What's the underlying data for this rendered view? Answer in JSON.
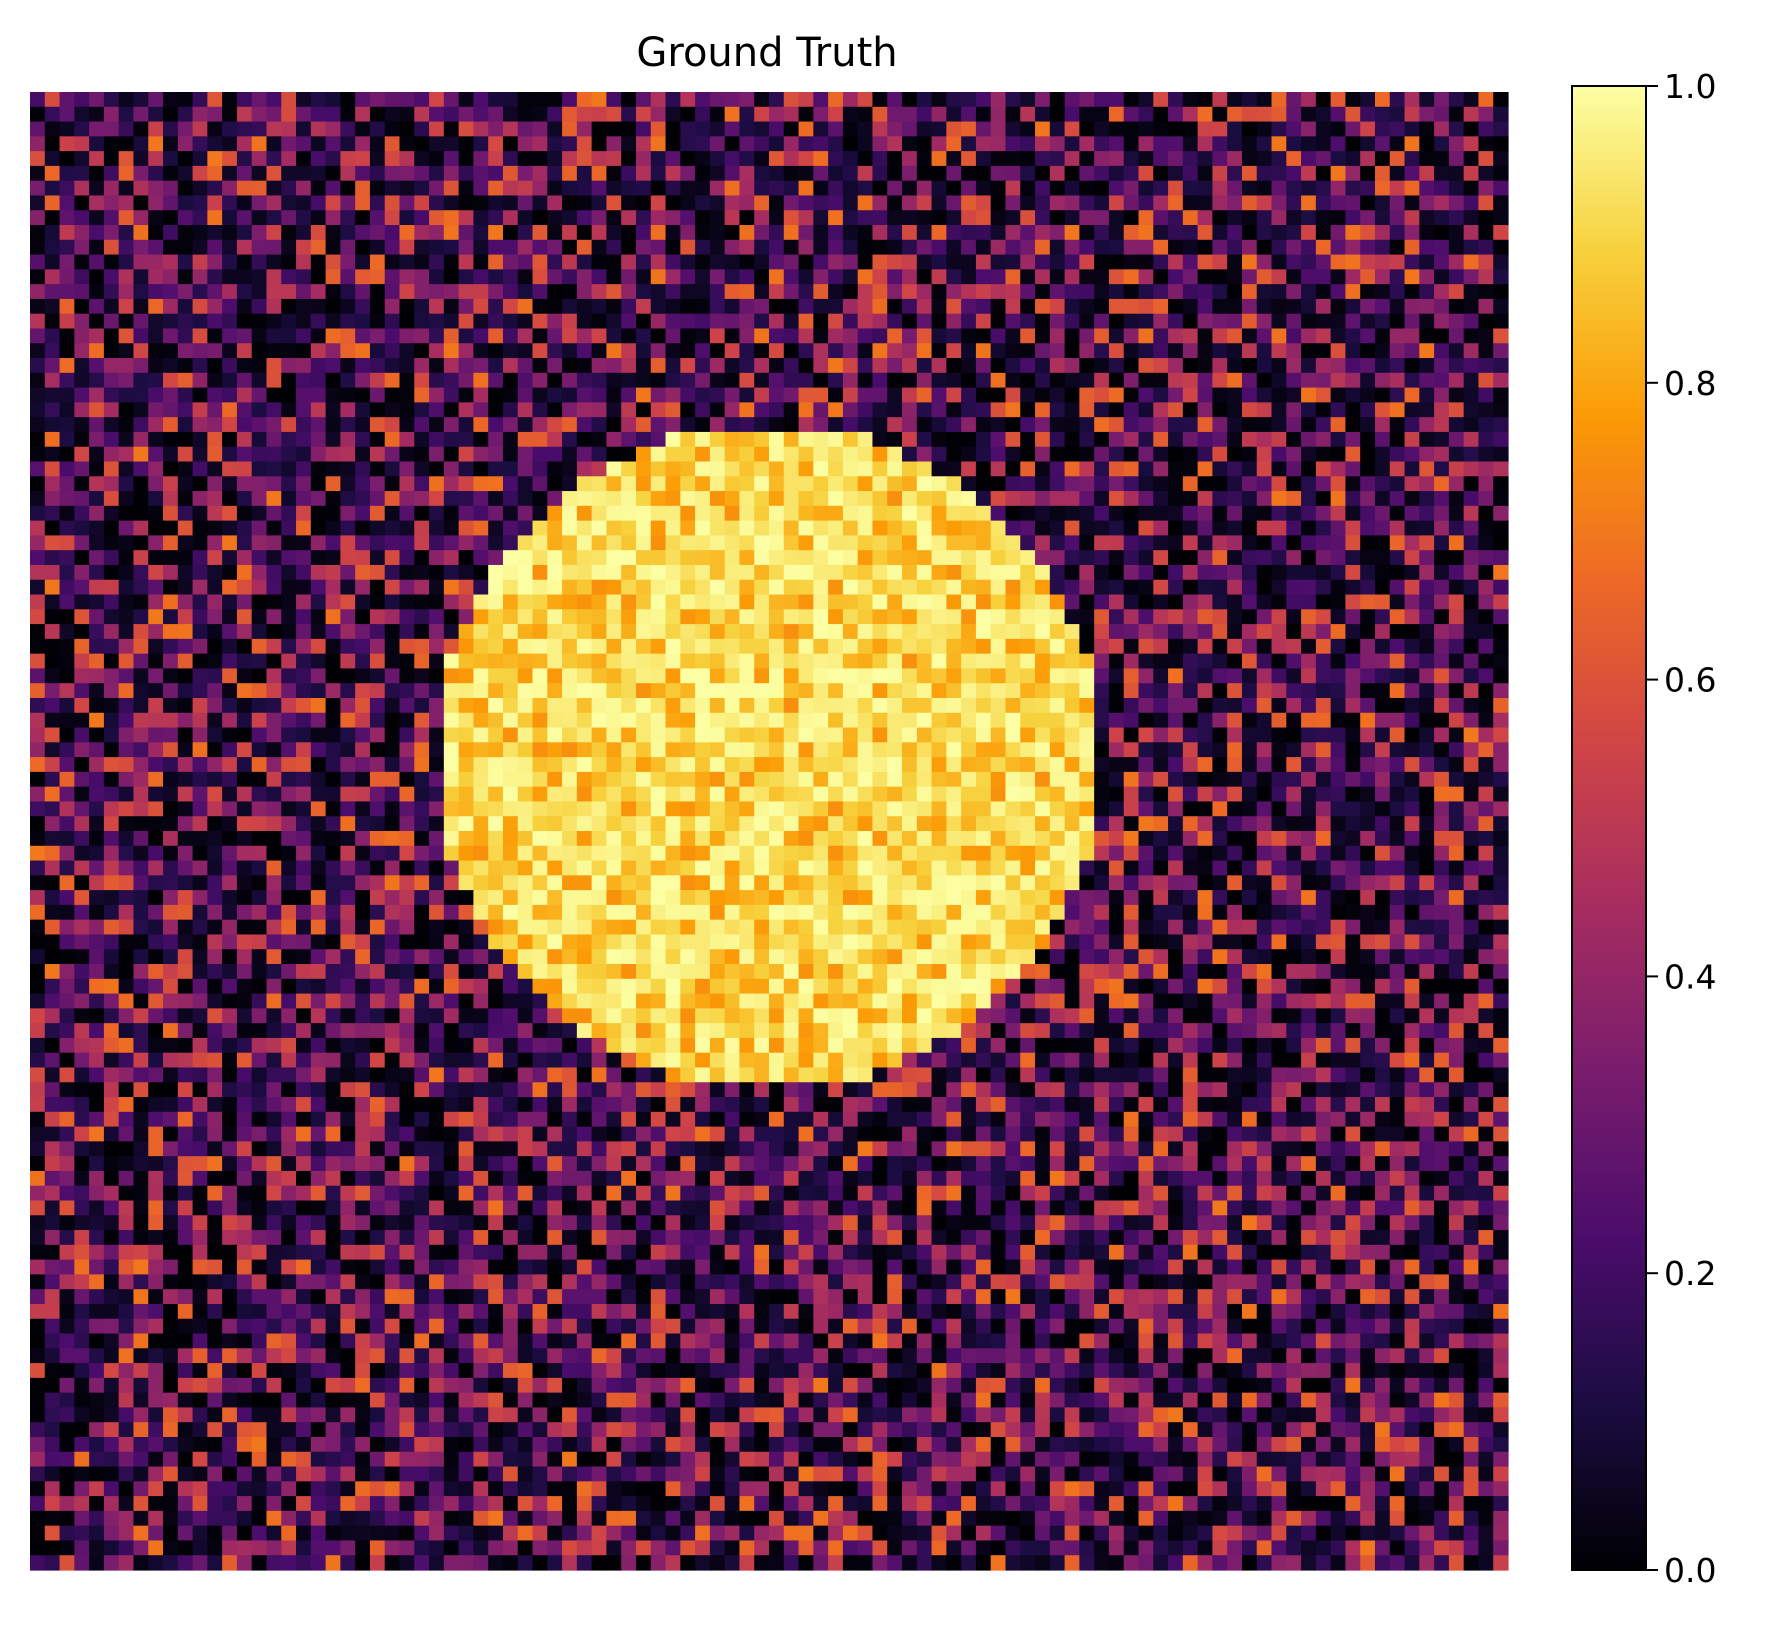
{
  "chart_data": {
    "type": "heatmap",
    "title": "Ground Truth",
    "xlabel": "",
    "ylabel": "",
    "axes_visible": false,
    "grid": false,
    "colormap": "inferno",
    "colormap_stops": [
      "#000004",
      "#1b0c41",
      "#4a0c6b",
      "#781c6d",
      "#a52c60",
      "#cf4446",
      "#ed6925",
      "#fb9b06",
      "#f7d13d",
      "#fcffa4"
    ],
    "value_range": [
      0.0,
      1.0
    ],
    "grid_size": [
      100,
      100
    ],
    "pattern": {
      "shape": "disk",
      "disk_center_cell": [
        50,
        45
      ],
      "disk_radius_cells": 22.5,
      "inside_value_range": [
        0.75,
        1.0
      ],
      "outside_value_range": [
        0.0,
        0.7
      ],
      "outside_typical_max": 0.45,
      "noise": "random per-cell"
    },
    "colorbar": {
      "ticks": [
        0.0,
        0.2,
        0.4,
        0.6,
        0.8,
        1.0
      ],
      "tick_labels": [
        "0.0",
        "0.2",
        "0.4",
        "0.6",
        "0.8",
        "1.0"
      ],
      "placement": "right"
    }
  }
}
